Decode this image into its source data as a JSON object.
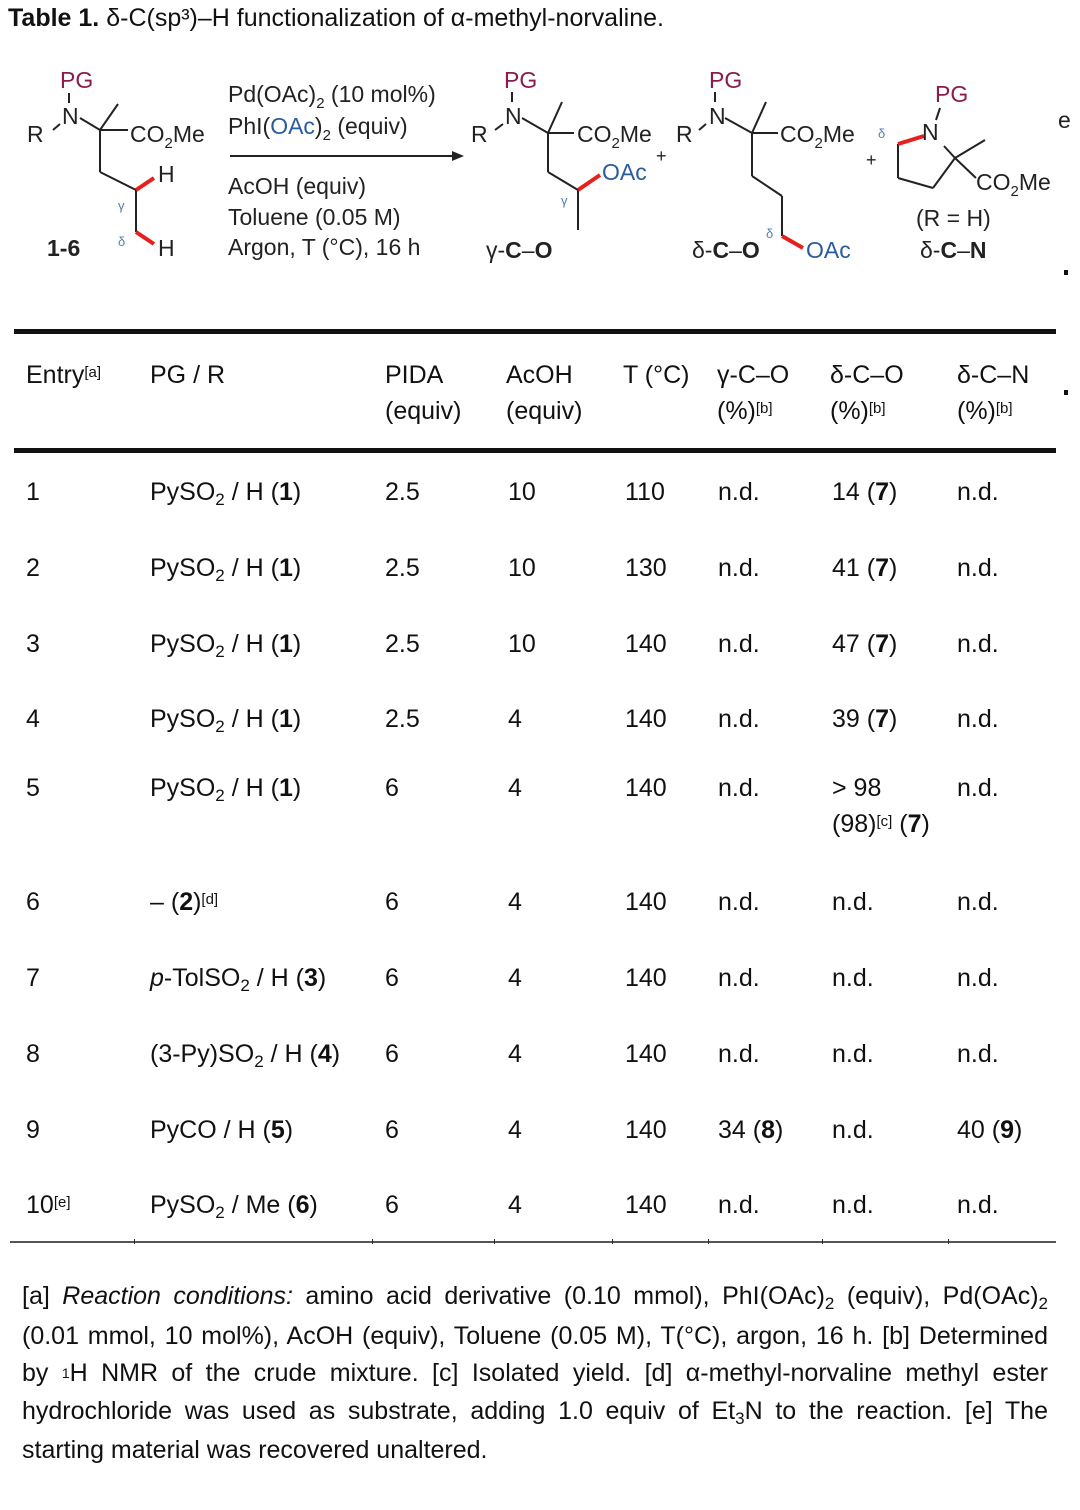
{
  "title": {
    "label": "Table 1.",
    "text": "δ-C(sp³)–H functionalization of α-methyl-norvaline."
  },
  "scheme": {
    "colors": {
      "pg": "#8b1a4f",
      "oac": "#2a5b9c",
      "bond_highlight": "#e8201c",
      "greek": "#4f7fb8"
    },
    "substrate": {
      "pg": "PG",
      "n": "N",
      "r": "R",
      "ester": "CO2Me",
      "h_gamma": "H",
      "h_delta": "H",
      "gamma": "γ",
      "delta": "δ",
      "label": "1-6"
    },
    "conditions": {
      "above": [
        "Pd(OAc)2 (10 mol%)",
        "PhI(OAc)2  (equiv)"
      ],
      "below": [
        "AcOH (equiv)",
        "Toluene  (0.05 M)",
        "Argon, T (°C), 16 h"
      ]
    },
    "products": [
      {
        "label": "γ-C–O",
        "pg": "PG",
        "oac": "OAc",
        "marker": "γ"
      },
      {
        "label": "δ-C–O",
        "pg": "PG",
        "oac": "OAc",
        "marker": "δ"
      },
      {
        "label": "δ-C–N",
        "pg": "PG",
        "note": "(R = H)",
        "marker": "δ"
      }
    ],
    "plus": "+"
  },
  "table": {
    "headers": [
      {
        "line1": "Entry",
        "sup": "[a]",
        "line2": ""
      },
      {
        "line1": "PG / R",
        "sup": "",
        "line2": ""
      },
      {
        "line1": "PIDA",
        "sup": "",
        "line2": "(equiv)"
      },
      {
        "line1": "AcOH",
        "sup": "",
        "line2": "(equiv)"
      },
      {
        "line1": "T (°C)",
        "sup": "",
        "line2": ""
      },
      {
        "line1": "γ-C–O",
        "sup": "[b]",
        "line2": "(%)"
      },
      {
        "line1": "δ-C–O",
        "sup": "[b]",
        "line2": "(%)"
      },
      {
        "line1": "δ-C–N",
        "sup": "[b]",
        "line2": "(%)"
      }
    ],
    "rows": [
      {
        "entry": "1",
        "entry_sup": "",
        "pg_pre": "PySO",
        "pg_sub": "2",
        "pg_post": " / H (",
        "cmpd": "1",
        "pg_sup": "",
        "pida": "2.5",
        "acoh": "10",
        "t": "110",
        "gco": "n.d.",
        "dco": "14 (",
        "dco_cmpd": "7",
        "dcn": "n.d."
      },
      {
        "entry": "2",
        "entry_sup": "",
        "pg_pre": "PySO",
        "pg_sub": "2",
        "pg_post": " / H (",
        "cmpd": "1",
        "pg_sup": "",
        "pida": "2.5",
        "acoh": "10",
        "t": "130",
        "gco": "n.d.",
        "dco": "41 (",
        "dco_cmpd": "7",
        "dcn": "n.d."
      },
      {
        "entry": "3",
        "entry_sup": "",
        "pg_pre": "PySO",
        "pg_sub": "2",
        "pg_post": " / H (",
        "cmpd": "1",
        "pg_sup": "",
        "pida": "2.5",
        "acoh": "10",
        "t": "140",
        "gco": "n.d.",
        "dco": "47 (",
        "dco_cmpd": "7",
        "dcn": "n.d."
      },
      {
        "entry": "4",
        "entry_sup": "",
        "pg_pre": "PySO",
        "pg_sub": "2",
        "pg_post": " / H (",
        "cmpd": "1",
        "pg_sup": "",
        "pida": "2.5",
        "acoh": "4",
        "t": "140",
        "gco": "n.d.",
        "dco": "39 (",
        "dco_cmpd": "7",
        "dcn": "n.d."
      },
      {
        "entry": "5",
        "entry_sup": "",
        "pg_pre": "PySO",
        "pg_sub": "2",
        "pg_post": " / H (",
        "cmpd": "1",
        "pg_sup": "",
        "pida": "6",
        "acoh": "4",
        "t": "140",
        "gco": "n.d.",
        "dco": "> 98",
        "dco_line2": "(98)",
        "dco_sup": "[c]",
        "dco_cmpd": "7",
        "dcn": "n.d."
      },
      {
        "entry": "6",
        "entry_sup": "",
        "pg_pre": "– (",
        "pg_sub": "",
        "pg_post": "",
        "cmpd": "2",
        "pg_sup": "[d]",
        "pida": "6",
        "acoh": "4",
        "t": "140",
        "gco": "n.d.",
        "dco": "n.d.",
        "dco_cmpd": "",
        "dcn": "n.d."
      },
      {
        "entry": "7",
        "entry_sup": "",
        "pg_italic": "p",
        "pg_pre": "-TolSO",
        "pg_sub": "2",
        "pg_post": " / H (",
        "cmpd": "3",
        "pg_sup": "",
        "pida": "6",
        "acoh": "4",
        "t": "140",
        "gco": "n.d.",
        "dco": "n.d.",
        "dco_cmpd": "",
        "dcn": "n.d."
      },
      {
        "entry": "8",
        "entry_sup": "",
        "pg_pre": "(3-Py)SO",
        "pg_sub": "2",
        "pg_post": " / H (",
        "cmpd": "4",
        "pg_sup": "",
        "pida": "6",
        "acoh": "4",
        "t": "140",
        "gco": "n.d.",
        "dco": "n.d.",
        "dco_cmpd": "",
        "dcn": "n.d."
      },
      {
        "entry": "9",
        "entry_sup": "",
        "pg_pre": "PyCO / H (",
        "pg_sub": "",
        "pg_post": "",
        "cmpd": "5",
        "pg_sup": "",
        "pida": "6",
        "acoh": "4",
        "t": "140",
        "gco": "34 (",
        "gco_cmpd": "8",
        "dco": "n.d.",
        "dco_cmpd": "",
        "dcn": "40 (",
        "dcn_cmpd": "9"
      },
      {
        "entry": "10",
        "entry_sup": "[e]",
        "pg_pre": "PySO",
        "pg_sub": "2",
        "pg_post": " / Me (",
        "cmpd": "6",
        "pg_sup": "",
        "pida": "6",
        "acoh": "4",
        "t": "140",
        "gco": "n.d.",
        "dco": "n.d.",
        "dco_cmpd": "",
        "dcn": "n.d."
      }
    ]
  },
  "footnotes": {
    "a_tag": "[a]",
    "a_italic": "Reaction conditions:",
    "a_text1": " amino acid derivative (0.10 mmol), PhI(OAc)",
    "a_text2": " (equiv), Pd(OAc)",
    "a_text3": " (0.01 mmol, 10 mol%), AcOH (equiv), Toluene (0.05 M), T(°C), argon, 16 h.",
    "b": " [b] Determined by ",
    "b_sup": "1",
    "b_text": "H NMR of the crude mixture.",
    "c": " [c] Isolated yield.",
    "d": " [d] α-methyl-norvaline methyl ester hydrochloride was used as substrate, adding 1.0 equiv of Et",
    "d_sub": "3",
    "d_text": "N to the reaction.",
    "e": " [e] The starting material was recovered unaltered.",
    "sub2": "2"
  }
}
